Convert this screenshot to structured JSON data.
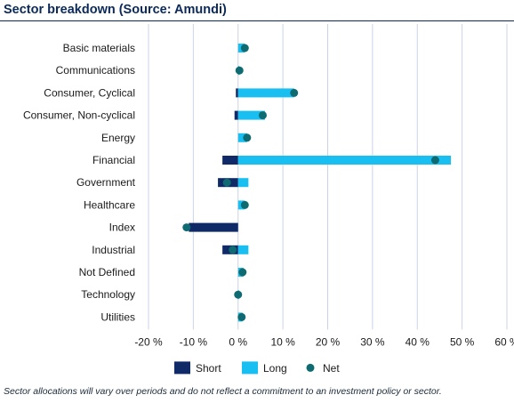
{
  "title": "Sector breakdown (Source: Amundi)",
  "footnote": "Sector allocations will vary over periods and do not reflect a commitment to an investment policy or sector.",
  "colors": {
    "short": "#0f2a66",
    "long": "#19bff0",
    "net": "#0f6b72",
    "grid": "#c9d3e6",
    "title": "#0b2a59"
  },
  "chart_data": {
    "type": "bar",
    "orientation": "horizontal",
    "categories": [
      "Basic materials",
      "Communications",
      "Consumer, Cyclical",
      "Consumer, Non-cyclical",
      "Energy",
      "Financial",
      "Government",
      "Healthcare",
      "Index",
      "Industrial",
      "Not Defined",
      "Technology",
      "Utilities"
    ],
    "series": [
      {
        "name": "Short",
        "values": [
          0,
          0,
          -0.5,
          -0.8,
          0,
          -3.5,
          -4.5,
          0,
          -11,
          -3.5,
          0,
          0,
          0
        ]
      },
      {
        "name": "Long",
        "values": [
          1.5,
          0.3,
          12.5,
          6,
          2,
          47.5,
          2.3,
          1.5,
          0,
          2.3,
          1.2,
          0.2,
          1
        ]
      },
      {
        "name": "Net",
        "values": [
          1.5,
          0.3,
          12.5,
          5.5,
          2,
          44,
          -2.5,
          1.5,
          -11.5,
          -1.2,
          1,
          0,
          0.8
        ]
      }
    ],
    "xlim": [
      -20,
      60
    ],
    "xticks": [
      -20,
      -10,
      0,
      10,
      20,
      30,
      40,
      50,
      60
    ],
    "xtick_labels": [
      "-20 %",
      "-10 %",
      "0 %",
      "10 %",
      "20 %",
      "30 %",
      "40 %",
      "50 %",
      "60 %"
    ],
    "xlabel": "",
    "ylabel": "",
    "grid": "vertical",
    "legend_position": "bottom"
  }
}
